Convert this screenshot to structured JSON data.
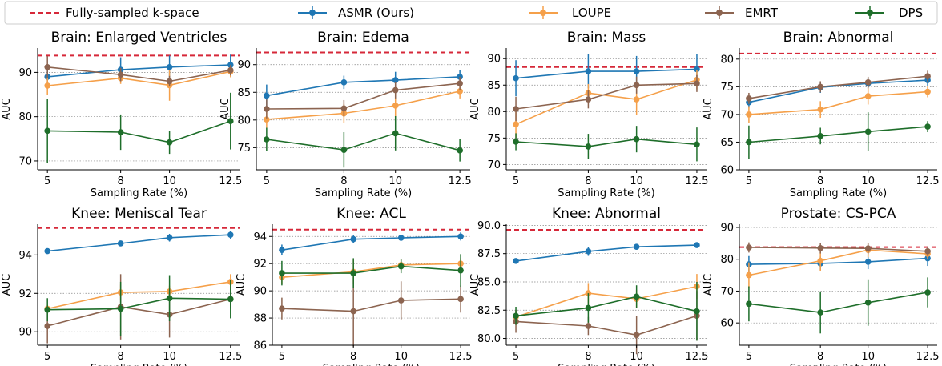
{
  "legend": {
    "placement": "top",
    "entries": [
      {
        "label": "Fully-sampled k-space",
        "color": "#d62839",
        "style": "dashed"
      },
      {
        "label": "ASMR (Ours)",
        "color": "#1f77b4",
        "style": "line-marker"
      },
      {
        "label": "LOUPE",
        "color": "#f5a04a",
        "style": "line-marker"
      },
      {
        "label": "EMRT",
        "color": "#8c6450",
        "style": "line-marker"
      },
      {
        "label": "DPS",
        "color": "#1e6e2a",
        "style": "line-marker"
      }
    ]
  },
  "chart_data": [
    {
      "type": "line",
      "title": "Brain: Enlarged Ventricles",
      "xlabel": "Sampling Rate (%)",
      "ylabel": "AUC",
      "x": [
        5,
        8,
        10,
        12.5
      ],
      "x_ticklabels": [
        "5",
        "8",
        "10",
        "12.5"
      ],
      "ylim": [
        68,
        95.5
      ],
      "yticks": [
        70,
        80,
        90
      ],
      "grid": "y-dotted",
      "reference": 93.8,
      "series": [
        {
          "name": "ASMR (Ours)",
          "values": [
            89,
            90.6,
            91.2,
            91.7
          ],
          "err": [
            2.5,
            2.8,
            2.6,
            2.3
          ]
        },
        {
          "name": "LOUPE",
          "values": [
            87,
            88.7,
            87.1,
            90.2
          ],
          "err": [
            2.0,
            1.3,
            3.5,
            1.3
          ]
        },
        {
          "name": "EMRT",
          "values": [
            91.2,
            89.5,
            88.0,
            90.5
          ],
          "err": [
            2.5,
            1.5,
            1.2,
            1.2
          ]
        },
        {
          "name": "DPS",
          "values": [
            76.8,
            76.5,
            74.2,
            79.0
          ],
          "err": [
            7.2,
            4.0,
            2.6,
            6.4
          ]
        }
      ]
    },
    {
      "type": "line",
      "title": "Brain: Edema",
      "xlabel": "Sampling Rate (%)",
      "ylabel": "AUC",
      "x": [
        5,
        8,
        10,
        12.5
      ],
      "x_ticklabels": [
        "5",
        "8",
        "10",
        "12.5"
      ],
      "ylim": [
        71,
        93
      ],
      "yticks": [
        75,
        80,
        85,
        90
      ],
      "grid": "y-dotted",
      "reference": 92.2,
      "series": [
        {
          "name": "ASMR (Ours)",
          "values": [
            84.4,
            86.8,
            87.2,
            87.8
          ],
          "err": [
            2.0,
            1.2,
            1.5,
            1.2
          ]
        },
        {
          "name": "LOUPE",
          "values": [
            80.1,
            81.2,
            82.6,
            85.2
          ],
          "err": [
            1.5,
            1.7,
            2.1,
            1.3
          ]
        },
        {
          "name": "EMRT",
          "values": [
            82.0,
            82.1,
            85.4,
            86.6
          ],
          "err": [
            1.7,
            1.5,
            1.5,
            1.2
          ]
        },
        {
          "name": "DPS",
          "values": [
            76.5,
            74.6,
            77.6,
            74.5
          ],
          "err": [
            2.1,
            3.2,
            3.1,
            2.0
          ]
        }
      ]
    },
    {
      "type": "line",
      "title": "Brain: Mass",
      "xlabel": "Sampling Rate (%)",
      "ylabel": "AUC",
      "x": [
        5,
        8,
        10,
        12.5
      ],
      "x_ticklabels": [
        "5",
        "8",
        "10",
        "12.5"
      ],
      "ylim": [
        69,
        92
      ],
      "yticks": [
        70,
        75,
        80,
        85,
        90
      ],
      "grid": "y-dotted",
      "reference": 88.4,
      "series": [
        {
          "name": "ASMR (Ours)",
          "values": [
            86.3,
            87.6,
            87.6,
            88.0
          ],
          "err": [
            3.4,
            3.2,
            2.9,
            2.9
          ]
        },
        {
          "name": "LOUPE",
          "values": [
            77.6,
            83.5,
            82.3,
            86.0
          ],
          "err": [
            2.6,
            1.7,
            2.9,
            1.8
          ]
        },
        {
          "name": "EMRT",
          "values": [
            80.5,
            82.3,
            85.0,
            85.3
          ],
          "err": [
            2.3,
            1.7,
            1.6,
            1.6
          ]
        },
        {
          "name": "DPS",
          "values": [
            74.3,
            73.4,
            74.8,
            73.8
          ],
          "err": [
            1.6,
            2.4,
            2.5,
            3.2
          ]
        }
      ]
    },
    {
      "type": "line",
      "title": "Brain: Abnormal",
      "xlabel": "Sampling Rate (%)",
      "ylabel": "AUC",
      "x": [
        5,
        8,
        10,
        12.5
      ],
      "x_ticklabels": [
        "5",
        "8",
        "10",
        "12.5"
      ],
      "ylim": [
        60,
        82
      ],
      "yticks": [
        60,
        65,
        70,
        75,
        80
      ],
      "grid": "y-dotted",
      "reference": 81.0,
      "series": [
        {
          "name": "ASMR (Ours)",
          "values": [
            72.2,
            74.9,
            75.6,
            76.2
          ],
          "err": [
            1.0,
            1.0,
            1.0,
            1.0
          ]
        },
        {
          "name": "LOUPE",
          "values": [
            70.0,
            70.9,
            73.3,
            74.1
          ],
          "err": [
            1.5,
            1.5,
            1.5,
            1.0
          ]
        },
        {
          "name": "EMRT",
          "values": [
            72.9,
            75.0,
            75.8,
            76.9
          ],
          "err": [
            1.0,
            1.0,
            1.0,
            1.0
          ]
        },
        {
          "name": "DPS",
          "values": [
            65.0,
            66.1,
            66.9,
            67.8
          ],
          "err": [
            3.0,
            1.5,
            3.5,
            1.0
          ]
        }
      ]
    },
    {
      "type": "line",
      "title": "Knee: Meniscal Tear",
      "xlabel": "Sampling Rate (%)",
      "ylabel": "AUC",
      "x": [
        5,
        8,
        10,
        12.5
      ],
      "x_ticklabels": [
        "5",
        "8",
        "10",
        "12.5"
      ],
      "ylim": [
        89.3,
        95.6
      ],
      "yticks": [
        90,
        92,
        94
      ],
      "grid": "y-dotted",
      "reference": 95.4,
      "series": [
        {
          "name": "ASMR (Ours)",
          "values": [
            94.2,
            94.6,
            94.9,
            95.05
          ],
          "err": [
            0.1,
            0.1,
            0.2,
            0.2
          ]
        },
        {
          "name": "LOUPE",
          "values": [
            91.2,
            92.05,
            92.1,
            92.6
          ],
          "err": [
            0.2,
            0.4,
            0.3,
            0.4
          ]
        },
        {
          "name": "EMRT",
          "values": [
            90.3,
            91.3,
            90.9,
            91.7
          ],
          "err": [
            0.9,
            1.7,
            1.2,
            0.5
          ]
        },
        {
          "name": "DPS",
          "values": [
            91.15,
            91.2,
            91.75,
            91.7
          ],
          "err": [
            0.6,
            1.4,
            1.2,
            1.0
          ]
        }
      ]
    },
    {
      "type": "line",
      "title": "Knee: ACL",
      "xlabel": "Sampling Rate (%)",
      "ylabel": "AUC",
      "x": [
        5,
        8,
        10,
        12.5
      ],
      "x_ticklabels": [
        "5",
        "8",
        "10",
        "12.5"
      ],
      "ylim": [
        86,
        94.9
      ],
      "yticks": [
        86,
        88,
        90,
        92,
        94
      ],
      "grid": "y-dotted",
      "reference": 94.5,
      "series": [
        {
          "name": "ASMR (Ours)",
          "values": [
            93.0,
            93.8,
            93.9,
            94.0
          ],
          "err": [
            0.4,
            0.3,
            0.2,
            0.3
          ]
        },
        {
          "name": "LOUPE",
          "values": [
            91.0,
            91.4,
            91.9,
            92.0
          ],
          "err": [
            0.5,
            0.9,
            0.4,
            0.4
          ]
        },
        {
          "name": "EMRT",
          "values": [
            88.7,
            88.5,
            89.3,
            89.4
          ],
          "err": [
            0.8,
            2.6,
            1.4,
            1.0
          ]
        },
        {
          "name": "DPS",
          "values": [
            91.3,
            91.3,
            91.8,
            91.5
          ],
          "err": [
            0.9,
            1.1,
            0.5,
            1.2
          ]
        }
      ]
    },
    {
      "type": "line",
      "title": "Knee: Abnormal",
      "xlabel": "Sampling Rate (%)",
      "ylabel": "AUC",
      "x": [
        5,
        8,
        10,
        12.5
      ],
      "x_ticklabels": [
        "5",
        "8",
        "10",
        "12.5"
      ],
      "ylim": [
        79.4,
        90.1
      ],
      "yticks": [
        80.0,
        82.5,
        85.0,
        87.5,
        90.0
      ],
      "ytick_labels": [
        "80.0",
        "82.5",
        "85.0",
        "87.5",
        "90.0"
      ],
      "grid": "y-dotted",
      "reference": 89.6,
      "series": [
        {
          "name": "ASMR (Ours)",
          "values": [
            86.85,
            87.7,
            88.1,
            88.25
          ],
          "err": [
            0.2,
            0.4,
            0.2,
            0.2
          ]
        },
        {
          "name": "LOUPE",
          "values": [
            81.9,
            84.0,
            83.5,
            84.6
          ],
          "err": [
            0.6,
            0.9,
            0.8,
            1.1
          ]
        },
        {
          "name": "EMRT",
          "values": [
            81.5,
            81.1,
            80.3,
            82.0
          ],
          "err": [
            1.0,
            0.8,
            1.7,
            2.2
          ]
        },
        {
          "name": "DPS",
          "values": [
            82.0,
            82.7,
            83.7,
            82.4
          ],
          "err": [
            0.8,
            1.3,
            1.0,
            2.6
          ]
        }
      ]
    },
    {
      "type": "line",
      "title": "Prostate: CS-PCA",
      "xlabel": "Sampling Rate (%)",
      "ylabel": "AUC",
      "x": [
        5,
        8,
        10,
        12.5
      ],
      "x_ticklabels": [
        "5",
        "8",
        "10",
        "12.5"
      ],
      "ylim": [
        53,
        91
      ],
      "yticks": [
        60,
        70,
        80,
        90
      ],
      "grid": "y-dotted",
      "reference": 83.8,
      "series": [
        {
          "name": "ASMR (Ours)",
          "values": [
            78.4,
            78.7,
            79.2,
            80.3
          ],
          "err": [
            2.6,
            2.1,
            2.3,
            2.4
          ]
        },
        {
          "name": "LOUPE",
          "values": [
            75.0,
            79.5,
            82.9,
            81.7
          ],
          "err": [
            4.0,
            3.2,
            2.3,
            1.6
          ]
        },
        {
          "name": "EMRT",
          "values": [
            83.7,
            83.5,
            83.4,
            82.5
          ],
          "err": [
            1.6,
            1.7,
            1.8,
            1.5
          ]
        },
        {
          "name": "DPS",
          "values": [
            66.0,
            63.3,
            66.4,
            69.6
          ],
          "err": [
            5.5,
            6.6,
            7.3,
            4.7
          ]
        }
      ]
    }
  ]
}
